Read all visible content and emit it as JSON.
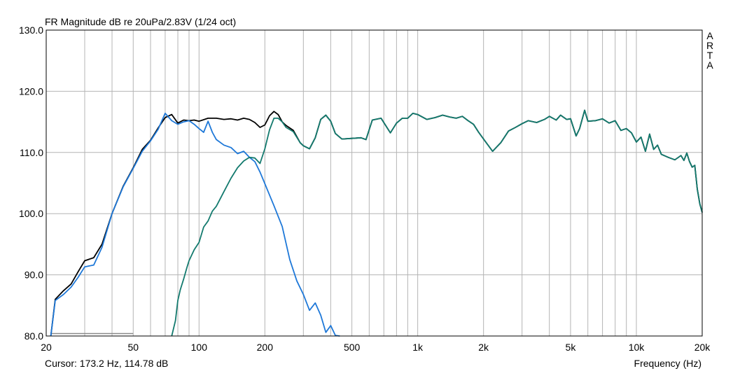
{
  "chart_data": {
    "type": "line",
    "title": "FR Magnitude dB re 20uPa/2.83V (1/24 oct)",
    "xlabel": "Frequency (Hz)",
    "ylabel": "",
    "x_scale": "log",
    "xlim": [
      20,
      20000
    ],
    "ylim": [
      80,
      130
    ],
    "grid": true,
    "y_ticks": [
      80,
      90,
      100,
      110,
      120,
      130
    ],
    "y_tick_labels": [
      "80.0",
      "90.0",
      "100.0",
      "110.0",
      "120.0",
      "130.0"
    ],
    "x_ticks": [
      20,
      50,
      100,
      200,
      500,
      1000,
      2000,
      5000,
      10000,
      20000
    ],
    "x_tick_labels": [
      "20",
      "50",
      "100",
      "200",
      "500",
      "1k",
      "2k",
      "5k",
      "10k",
      "20k"
    ],
    "x_minor_grid": [
      30,
      40,
      60,
      70,
      80,
      90,
      300,
      400,
      600,
      700,
      800,
      900,
      3000,
      4000,
      6000,
      7000,
      8000,
      9000
    ],
    "cursor_readout": "Cursor: 173.2 Hz, 114.78 dB",
    "series": [
      {
        "color": "#000000",
        "x": [
          21,
          22,
          24,
          26,
          28,
          30,
          33,
          36,
          40,
          45,
          50,
          55,
          60,
          65,
          70,
          75,
          80,
          85,
          90,
          95,
          100,
          110,
          120,
          130,
          140,
          150,
          160,
          170,
          180,
          190,
          200,
          210,
          220,
          230,
          240,
          250,
          270,
          290,
          300,
          320,
          340,
          360,
          380,
          400,
          420,
          450,
          500,
          550,
          580,
          620,
          680,
          750,
          800,
          850,
          900,
          950,
          1000,
          1100,
          1200,
          1300,
          1400,
          1500,
          1600,
          1700,
          1800,
          1900,
          2000,
          2200,
          2400,
          2600,
          2800,
          3000,
          3200,
          3500,
          3800,
          4000,
          4300,
          4500,
          4800,
          5000,
          5300,
          5500,
          5800,
          6000,
          6500,
          7000,
          7500,
          8000,
          8500,
          9000,
          9500,
          10000,
          10500,
          11000,
          11500,
          12000,
          12500,
          13000,
          14000,
          15000,
          16000,
          16500,
          17000,
          17500,
          18000,
          18500,
          19000,
          19500,
          20000
        ],
        "y": [
          80,
          86,
          87.4,
          88.5,
          90.5,
          92.3,
          92.8,
          95,
          100,
          104.5,
          107.5,
          110.5,
          112,
          114,
          115.7,
          116.2,
          114.8,
          115.3,
          115.2,
          115.3,
          115.1,
          115.6,
          115.6,
          115.4,
          115.5,
          115.3,
          115.6,
          115.4,
          114.9,
          114.1,
          114.5,
          116,
          116.7,
          116.2,
          115,
          114.4,
          113.6,
          111.6,
          111.1,
          110.6,
          112.4,
          115.4,
          116.1,
          115.1,
          113.1,
          112.2,
          112.3,
          112.4,
          112.1,
          115.3,
          115.6,
          113.2,
          114.8,
          115.6,
          115.6,
          116.4,
          116.2,
          115.4,
          115.7,
          116.1,
          115.8,
          115.6,
          115.9,
          115.2,
          114.6,
          113.3,
          112.2,
          110.2,
          111.6,
          113.5,
          114.1,
          114.7,
          115.2,
          114.9,
          115.4,
          115.9,
          115.3,
          116.1,
          115.4,
          115.5,
          112.7,
          113.9,
          116.9,
          115.1,
          115.2,
          115.5,
          114.8,
          115.2,
          113.6,
          113.9,
          113.2,
          111.7,
          112.5,
          110.2,
          113,
          110.5,
          111.2,
          109.7,
          109.2,
          108.8,
          109.5,
          108.7,
          109.9,
          108.5,
          107.6,
          107.9,
          104,
          101.6,
          100.2
        ]
      },
      {
        "color": "#1e78d8",
        "x": [
          21,
          22,
          24,
          26,
          28,
          30,
          33,
          36,
          40,
          45,
          50,
          55,
          60,
          65,
          70,
          75,
          80,
          85,
          90,
          95,
          100,
          105,
          110,
          115,
          120,
          130,
          140,
          150,
          160,
          170,
          180,
          190,
          200,
          220,
          240,
          260,
          280,
          300,
          320,
          340,
          360,
          380,
          400,
          420,
          440
        ],
        "y": [
          80,
          85.8,
          86.8,
          88,
          89.6,
          91.3,
          91.6,
          94.5,
          100,
          104.4,
          107.4,
          110.2,
          111.9,
          113.8,
          116.4,
          115.2,
          114.6,
          115,
          115.2,
          114.6,
          113.9,
          113.3,
          115.1,
          113.3,
          112.1,
          111.2,
          110.8,
          109.8,
          110.2,
          109.2,
          108.5,
          106.8,
          104.9,
          101.3,
          97.9,
          92.5,
          89,
          86.8,
          84.2,
          85.4,
          83.4,
          80.6,
          81.7,
          80.1,
          80
        ]
      },
      {
        "color": "#137a6e",
        "x": [
          75,
          78,
          80,
          82,
          85,
          88,
          90,
          95,
          100,
          105,
          110,
          115,
          120,
          130,
          140,
          150,
          160,
          170,
          180,
          190,
          200,
          210,
          220,
          230,
          240,
          250,
          270,
          290,
          300,
          320,
          340,
          360,
          380,
          400,
          420,
          450,
          500,
          550,
          580,
          620,
          680,
          750,
          800,
          850,
          900,
          950,
          1000,
          1100,
          1200,
          1300,
          1400,
          1500,
          1600,
          1700,
          1800,
          1900,
          2000,
          2200,
          2400,
          2600,
          2800,
          3000,
          3200,
          3500,
          3800,
          4000,
          4300,
          4500,
          4800,
          5000,
          5300,
          5500,
          5800,
          6000,
          6500,
          7000,
          7500,
          8000,
          8500,
          9000,
          9500,
          10000,
          10500,
          11000,
          11500,
          12000,
          12500,
          13000,
          14000,
          15000,
          16000,
          16500,
          17000,
          17500,
          18000,
          18500,
          19000,
          19500,
          20000
        ],
        "y": [
          80,
          82.5,
          85.8,
          87.5,
          89.3,
          91.2,
          92.3,
          94.1,
          95.3,
          97.8,
          98.8,
          100.4,
          101.2,
          103.6,
          105.8,
          107.5,
          108.6,
          109.2,
          109.1,
          108.2,
          110.6,
          113.7,
          115.6,
          115.6,
          115,
          114.1,
          113.4,
          111.6,
          111.1,
          110.6,
          112.4,
          115.4,
          116.1,
          115.1,
          113.1,
          112.2,
          112.3,
          112.4,
          112.1,
          115.3,
          115.6,
          113.2,
          114.8,
          115.6,
          115.6,
          116.4,
          116.2,
          115.4,
          115.7,
          116.1,
          115.8,
          115.6,
          115.9,
          115.2,
          114.6,
          113.3,
          112.2,
          110.2,
          111.6,
          113.5,
          114.1,
          114.7,
          115.2,
          114.9,
          115.4,
          115.9,
          115.3,
          116.1,
          115.4,
          115.5,
          112.7,
          113.9,
          116.9,
          115.1,
          115.2,
          115.5,
          114.8,
          115.2,
          113.6,
          113.9,
          113.2,
          111.7,
          112.5,
          110.2,
          113,
          110.5,
          111.2,
          109.7,
          109.2,
          108.8,
          109.5,
          108.7,
          109.9,
          108.5,
          107.6,
          107.9,
          104,
          101.6,
          100.2
        ]
      }
    ]
  },
  "logo": [
    "A",
    "R",
    "T",
    "A"
  ],
  "colors": {
    "grid": "#b4b4b4",
    "frame": "#000000",
    "baseline_marker": "#8a8a8a"
  },
  "baseline_marker": {
    "x_start": 21,
    "x_end": 50,
    "y": 80.4
  }
}
